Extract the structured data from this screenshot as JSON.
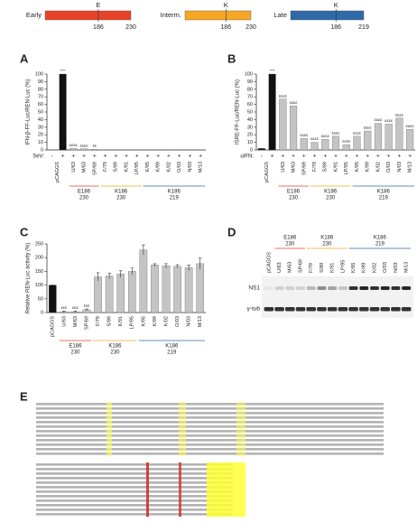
{
  "panel_labels": [
    "A",
    "B",
    "C",
    "D",
    "E"
  ],
  "header": {
    "stages": [
      {
        "label": "Early",
        "residue": "E",
        "start": "186",
        "end": "230",
        "color": "#e8412a"
      },
      {
        "label": "Interm.",
        "residue": "K",
        "start": "186",
        "end": "230",
        "color": "#f5a623"
      },
      {
        "label": "Late",
        "residue": "K",
        "start": "186",
        "end": "219",
        "color": "#2f6aa8"
      }
    ]
  },
  "chart_data": [
    {
      "type": "bar",
      "ylabel": "IFN-β-FF-Luc/REN-Luc (%)",
      "categories": [
        null,
        "pCAGGS",
        "U/63",
        "M/63",
        "SP/69",
        "F/79",
        "S/89",
        "K/91",
        "LP/95",
        "K/95",
        "K/99",
        "K/02",
        "O/03",
        "N/03",
        "M/13"
      ],
      "values": [
        0,
        100,
        2,
        1.5,
        1,
        0.3,
        0.3,
        0.3,
        0.3,
        0.3,
        0.3,
        0.3,
        0.3,
        0.3,
        0.3
      ],
      "colors": [
        "#111111",
        "#111111",
        "#c4c4c4",
        "#c4c4c4",
        "#c4c4c4",
        "#c4c4c4",
        "#c4c4c4",
        "#c4c4c4",
        "#c4c4c4",
        "#c4c4c4",
        "#c4c4c4",
        "#c4c4c4",
        "#c4c4c4",
        "#c4c4c4",
        "#c4c4c4"
      ],
      "significance": [
        null,
        "****",
        "££££",
        "££££",
        "££",
        null,
        null,
        null,
        null,
        null,
        null,
        null,
        null,
        null,
        null
      ],
      "treatment_label": "SeV:",
      "treatments": [
        "-",
        "+",
        "+",
        "+",
        "+",
        "+",
        "+",
        "+",
        "+",
        "+",
        "+",
        "+",
        "+",
        "+",
        "+"
      ],
      "ylim": [
        0,
        100
      ],
      "yticks": [
        0,
        10,
        20,
        30,
        40,
        50,
        60,
        70,
        80,
        90,
        100
      ],
      "groups": [
        {
          "name": "E186",
          "sub": "230",
          "color": "#e8412a"
        },
        {
          "name": "K186",
          "sub": "230",
          "color": "#f5a623"
        },
        {
          "name": "K186",
          "sub": "219",
          "color": "#2f6aa8"
        }
      ]
    },
    {
      "type": "bar",
      "ylabel": "ISRE-FF-Luc/REN-Luc (%)",
      "categories": [
        null,
        "pCAGGS",
        "U/63",
        "M/63",
        "SP/69",
        "F/79",
        "S/89",
        "K/91",
        "LP/95",
        "K/95",
        "K/99",
        "K/02",
        "O/03",
        "N/03",
        "M/13"
      ],
      "values": [
        2,
        100,
        67,
        58,
        15,
        10,
        14,
        18,
        7,
        18,
        25,
        35,
        34,
        42,
        27
      ],
      "colors": [
        "#111111",
        "#111111",
        "#c4c4c4",
        "#c4c4c4",
        "#c4c4c4",
        "#c4c4c4",
        "#c4c4c4",
        "#c4c4c4",
        "#c4c4c4",
        "#c4c4c4",
        "#c4c4c4",
        "#c4c4c4",
        "#c4c4c4",
        "#c4c4c4",
        "#c4c4c4"
      ],
      "significance": [
        null,
        "****",
        "££££",
        "££££",
        "££££",
        "££££",
        "££££",
        "££££",
        "££££",
        "££££",
        "££££",
        "££££",
        "££££",
        "££££",
        "££££"
      ],
      "treatment_label": "uIFN:",
      "treatments": [
        "-",
        "+",
        "+",
        "+",
        "+",
        "+",
        "+",
        "+",
        "+",
        "+",
        "+",
        "+",
        "+",
        "+",
        "+"
      ],
      "ylim": [
        0,
        100
      ],
      "yticks": [
        0,
        10,
        20,
        30,
        40,
        50,
        60,
        70,
        80,
        90,
        100
      ],
      "groups": [
        {
          "name": "E186",
          "sub": "230",
          "color": "#e8412a"
        },
        {
          "name": "K186",
          "sub": "230",
          "color": "#f5a623"
        },
        {
          "name": "K186",
          "sub": "219",
          "color": "#2f6aa8"
        }
      ]
    },
    {
      "type": "bar",
      "ylabel": "Relative REN-Luc activity (%)",
      "categories": [
        "pCAGGS",
        "U/63",
        "M/63",
        "SP/69",
        "F/79",
        "S/89",
        "K/91",
        "LP/95",
        "K/95",
        "K/99",
        "K/02",
        "O/03",
        "N/03",
        "M/13"
      ],
      "values": [
        100,
        3,
        3,
        10,
        130,
        133,
        140,
        150,
        228,
        173,
        170,
        168,
        163,
        178
      ],
      "errors": [
        0,
        2,
        2,
        3,
        15,
        10,
        12,
        12,
        18,
        5,
        8,
        6,
        10,
        20
      ],
      "colors": [
        "#111111",
        "#c4c4c4",
        "#c4c4c4",
        "#c4c4c4",
        "#c4c4c4",
        "#c4c4c4",
        "#c4c4c4",
        "#c4c4c4",
        "#c4c4c4",
        "#c4c4c4",
        "#c4c4c4",
        "#c4c4c4",
        "#c4c4c4",
        "#c4c4c4"
      ],
      "significance": [
        null,
        "£££",
        "£££",
        "£££",
        null,
        null,
        null,
        null,
        null,
        null,
        null,
        null,
        null,
        null
      ],
      "ylim": [
        0,
        250
      ],
      "yticks": [
        0,
        50,
        100,
        150,
        200,
        250
      ],
      "groups": [
        {
          "name": "E186",
          "sub": "230",
          "color": "#e8412a"
        },
        {
          "name": "K186",
          "sub": "230",
          "color": "#f5a623"
        },
        {
          "name": "K186",
          "sub": "219",
          "color": "#2f6aa8"
        }
      ]
    }
  ],
  "panel_d": {
    "lanes": [
      "pCAGGS",
      "U/63",
      "M/63",
      "SP/69",
      "F/79",
      "S/89",
      "K/91",
      "LP/95",
      "K/95",
      "K/99",
      "K/02",
      "O/03",
      "N/03",
      "M/13"
    ],
    "groups": [
      {
        "name": "E186",
        "sub": "230",
        "color": "#e8412a"
      },
      {
        "name": "K186",
        "sub": "230",
        "color": "#f5a623"
      },
      {
        "name": "K186",
        "sub": "219",
        "color": "#2f6aa8"
      }
    ],
    "rows": [
      "NS1",
      "γ-tub"
    ]
  }
}
